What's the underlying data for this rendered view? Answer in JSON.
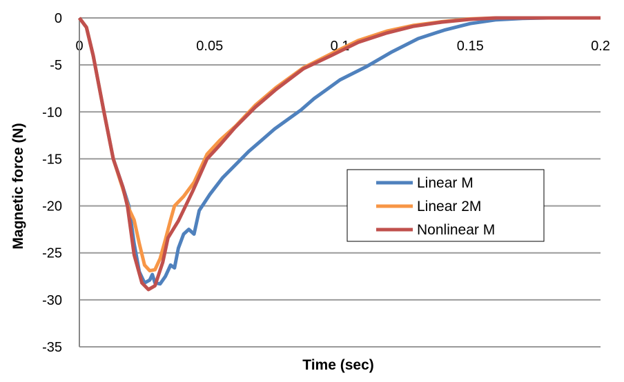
{
  "chart_data": {
    "type": "line",
    "title": "",
    "xlabel": "Time (sec)",
    "ylabel": "Magnetic force (N)",
    "xlim": [
      0,
      0.2
    ],
    "ylim": [
      -35,
      0
    ],
    "xticks": [
      0,
      0.05,
      0.1,
      0.15,
      0.2
    ],
    "xtick_labels": [
      "0",
      "0.05",
      "0.1",
      "0.15",
      "0.2"
    ],
    "yticks": [
      0,
      -5,
      -10,
      -15,
      -20,
      -25,
      -30,
      -35
    ],
    "ytick_labels": [
      "0",
      "-5",
      "-10",
      "-15",
      "-20",
      "-25",
      "-30",
      "-35"
    ],
    "grid": "horizontal",
    "legend_position": "right-middle",
    "series": [
      {
        "name": "Linear M",
        "color": "#4f81bd",
        "x": [
          0,
          0.0027,
          0.0053,
          0.0093,
          0.013,
          0.0167,
          0.019,
          0.021,
          0.023,
          0.025,
          0.027,
          0.028,
          0.029,
          0.031,
          0.033,
          0.035,
          0.0365,
          0.038,
          0.04,
          0.042,
          0.044,
          0.046,
          0.05,
          0.055,
          0.06,
          0.065,
          0.07,
          0.075,
          0.08,
          0.085,
          0.09,
          0.095,
          0.1,
          0.11,
          0.12,
          0.13,
          0.14,
          0.15,
          0.16,
          0.17,
          0.18,
          0.2
        ],
        "y": [
          0,
          -1,
          -4,
          -9.8,
          -15,
          -18,
          -20,
          -24,
          -27,
          -28.2,
          -27.9,
          -27.3,
          -28.2,
          -28.3,
          -27.5,
          -26.3,
          -26.6,
          -24.5,
          -23,
          -22.5,
          -23,
          -20.5,
          -18.8,
          -17,
          -15.6,
          -14.2,
          -13,
          -11.8,
          -10.8,
          -9.8,
          -8.6,
          -7.6,
          -6.6,
          -5.2,
          -3.6,
          -2.2,
          -1.3,
          -0.6,
          -0.2,
          -0.05,
          0,
          0
        ]
      },
      {
        "name": "Linear 2M",
        "color": "#f79646",
        "x": [
          0,
          0.0027,
          0.0053,
          0.0093,
          0.013,
          0.0167,
          0.019,
          0.021,
          0.023,
          0.025,
          0.027,
          0.029,
          0.031,
          0.033,
          0.035,
          0.0365,
          0.04,
          0.044,
          0.049,
          0.054,
          0.06,
          0.0675,
          0.0755,
          0.086,
          0.0967,
          0.107,
          0.118,
          0.128,
          0.139,
          0.15,
          0.16,
          0.2
        ],
        "y": [
          0,
          -1,
          -4,
          -9.8,
          -15,
          -18.2,
          -20.3,
          -21.5,
          -24,
          -26.3,
          -26.9,
          -26.8,
          -25.6,
          -23.6,
          -21.5,
          -20,
          -19,
          -17.5,
          -14.5,
          -13,
          -11.5,
          -9.3,
          -7.4,
          -5.3,
          -3.8,
          -2.4,
          -1.4,
          -0.8,
          -0.4,
          -0.1,
          0,
          0
        ]
      },
      {
        "name": "Nonlinear M",
        "color": "#c0504d",
        "x": [
          0,
          0.0027,
          0.0053,
          0.0093,
          0.013,
          0.0167,
          0.0185,
          0.021,
          0.024,
          0.0265,
          0.029,
          0.032,
          0.034,
          0.038,
          0.0437,
          0.049,
          0.054,
          0.0596,
          0.0675,
          0.0755,
          0.086,
          0.0967,
          0.107,
          0.118,
          0.128,
          0.139,
          0.15,
          0.16,
          0.2
        ],
        "y": [
          0,
          -1,
          -4,
          -9.8,
          -15,
          -18,
          -20.1,
          -25.2,
          -28.2,
          -28.9,
          -28.5,
          -26,
          -23.4,
          -21.6,
          -18.3,
          -15,
          -13.5,
          -11.7,
          -9.5,
          -7.6,
          -5.4,
          -4,
          -2.6,
          -1.6,
          -0.9,
          -0.45,
          -0.15,
          0,
          0
        ]
      }
    ]
  }
}
